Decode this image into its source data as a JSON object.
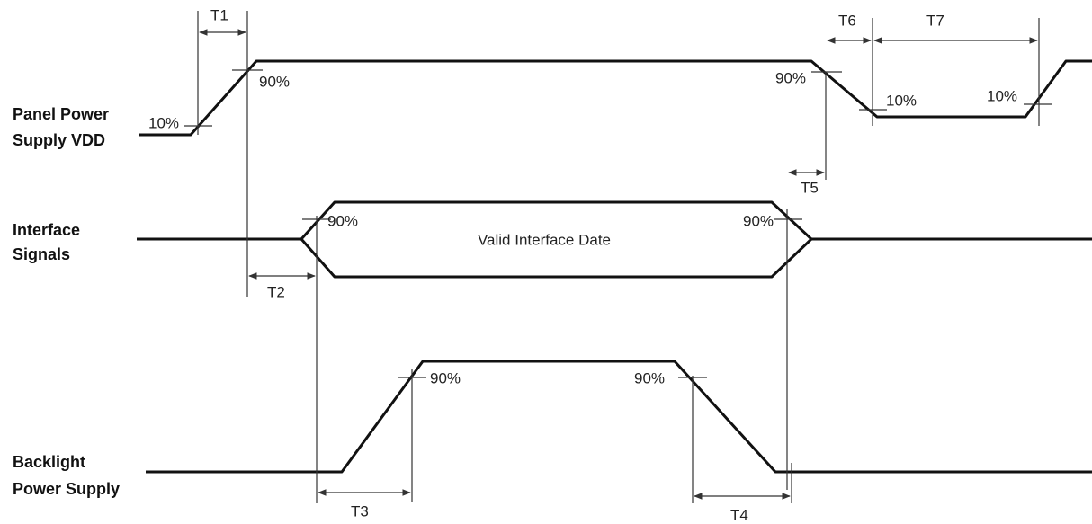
{
  "signals": [
    {
      "label": [
        "Panel Power",
        "Supply VDD"
      ]
    },
    {
      "label": [
        "Interface",
        "Signals"
      ]
    },
    {
      "label": [
        "Backlight",
        "Power Supply"
      ]
    }
  ],
  "interface_data": "Valid Interface Date",
  "levels": [
    "10%",
    "90%",
    "90%",
    "10%",
    "10%",
    "90%",
    "90%",
    "90%",
    "90%"
  ],
  "timings": [
    "T1",
    "T2",
    "T3",
    "T4",
    "T5",
    "T6",
    "T7"
  ]
}
